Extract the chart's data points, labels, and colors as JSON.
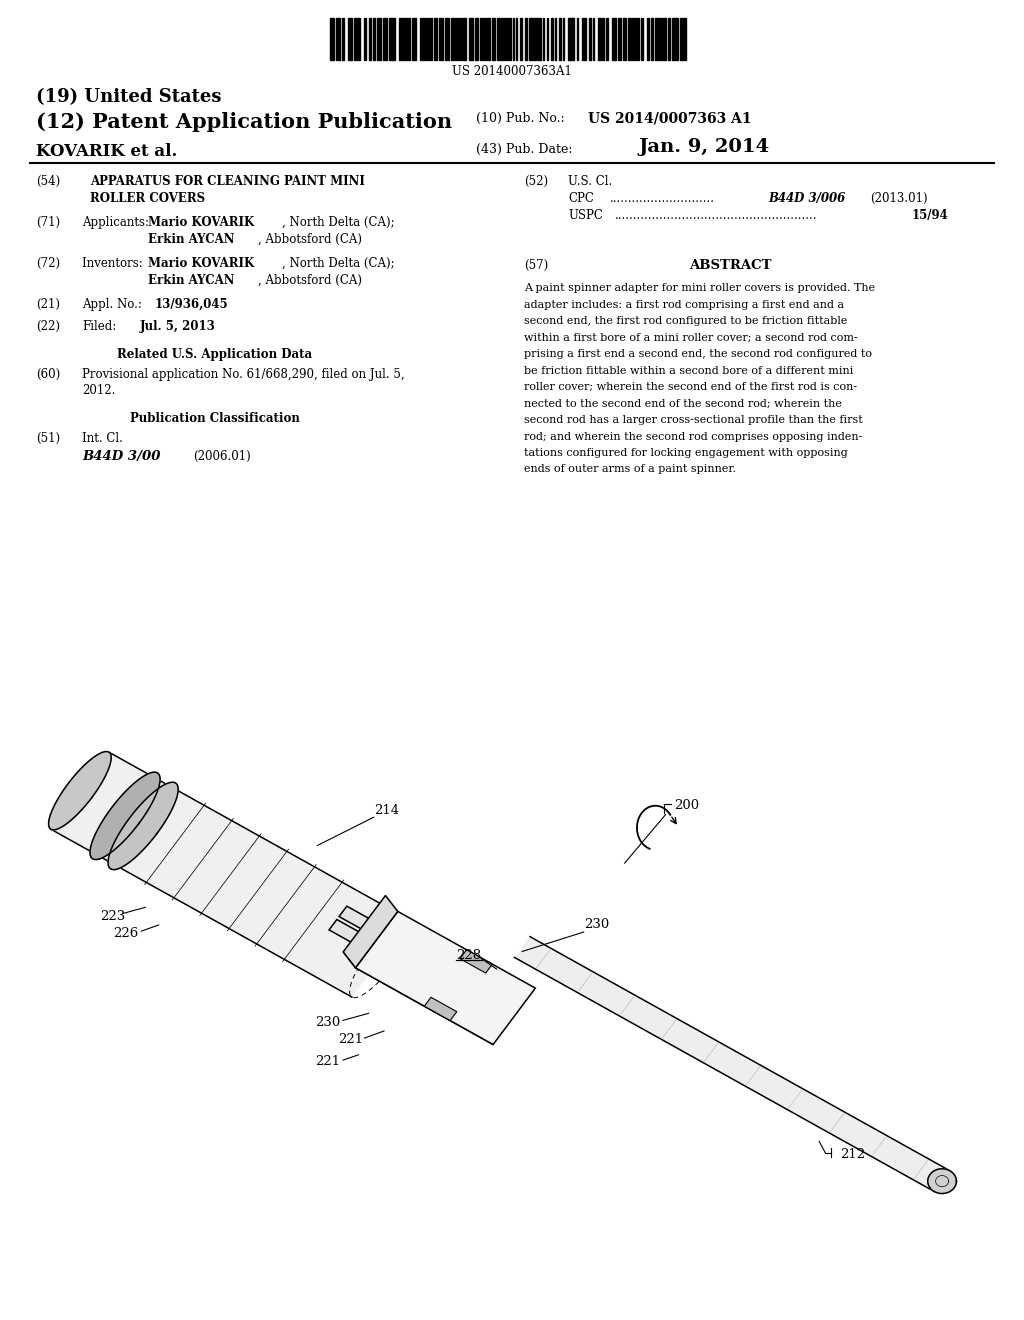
{
  "background_color": "#ffffff",
  "barcode_text": "US 20140007363A1",
  "header": {
    "title_19": "(19) United States",
    "title_12": "(12) Patent Application Publication",
    "pub_no_label": "(10) Pub. No.:",
    "pub_no_val": "US 2014/0007363 A1",
    "author": "KOVARIK et al.",
    "pub_date_label": "(43) Pub. Date:",
    "pub_date_val": "Jan. 9, 2014"
  },
  "left_col": {
    "f54_tag": "(54)",
    "f54_line1": "APPARATUS FOR CLEANING PAINT MINI",
    "f54_line2": "ROLLER COVERS",
    "f71_tag": "(71)",
    "f71_label": "Applicants:",
    "f71_name1_bold": "Mario KOVARIK",
    "f71_name1_rest": ", North Delta (CA);",
    "f71_name2_bold": "Erkin AYCAN",
    "f71_name2_rest": ", Abbotsford (CA)",
    "f72_tag": "(72)",
    "f72_label": "Inventors:  ",
    "f72_name1_bold": "Mario KOVARIK",
    "f72_name1_rest": ", North Delta (CA);",
    "f72_name2_bold": "Erkin AYCAN",
    "f72_name2_rest": ", Abbotsford (CA)",
    "f21_tag": "(21)",
    "f21_text": "Appl. No.: ",
    "f21_val": "13/936,045",
    "f22_tag": "(22)",
    "f22_label": "Filed:",
    "f22_val": "Jul. 5, 2013",
    "related_header": "Related U.S. Application Data",
    "f60_tag": "(60)",
    "f60_text1": "Provisional application No. 61/668,290, filed on Jul. 5,",
    "f60_text2": "2012.",
    "pub_class_header": "Publication Classification",
    "f51_tag": "(51)",
    "f51_label": "Int. Cl.",
    "f51_class": "B44D 3/00",
    "f51_year": "(2006.01)"
  },
  "right_col": {
    "f52_tag": "(52)",
    "f52_label": "U.S. Cl.",
    "cpc_label": "CPC",
    "cpc_dots": "............................",
    "cpc_val": "B44D 3/006",
    "cpc_year": "(2013.01)",
    "uspc_label": "USPC",
    "uspc_dots": "......................................................",
    "uspc_val": "15/94",
    "f57_tag": "(57)",
    "f57_title": "ABSTRACT",
    "abstract_lines": [
      "A paint spinner adapter for mini roller covers is provided. The",
      "adapter includes: a first rod comprising a first end and a",
      "second end, the first rod configured to be friction fittable",
      "within a first bore of a mini roller cover; a second rod com-",
      "prising a first end a second end, the second rod configured to",
      "be friction fittable within a second bore of a different mini",
      "roller cover; wherein the second end of the first rod is con-",
      "nected to the second end of the second rod; wherein the",
      "second rod has a larger cross-sectional profile than the first",
      "rod; and wherein the second rod comprises opposing inden-",
      "tations configured for locking engagement with opposing",
      "ends of outer arms of a paint spinner."
    ]
  },
  "diagram": {
    "label_200": "200",
    "label_212": "212",
    "label_214": "214",
    "label_221a": "221",
    "label_221b": "221",
    "label_223": "223",
    "label_226": "226",
    "label_228": "228",
    "label_230a": "230",
    "label_230b": "230"
  }
}
